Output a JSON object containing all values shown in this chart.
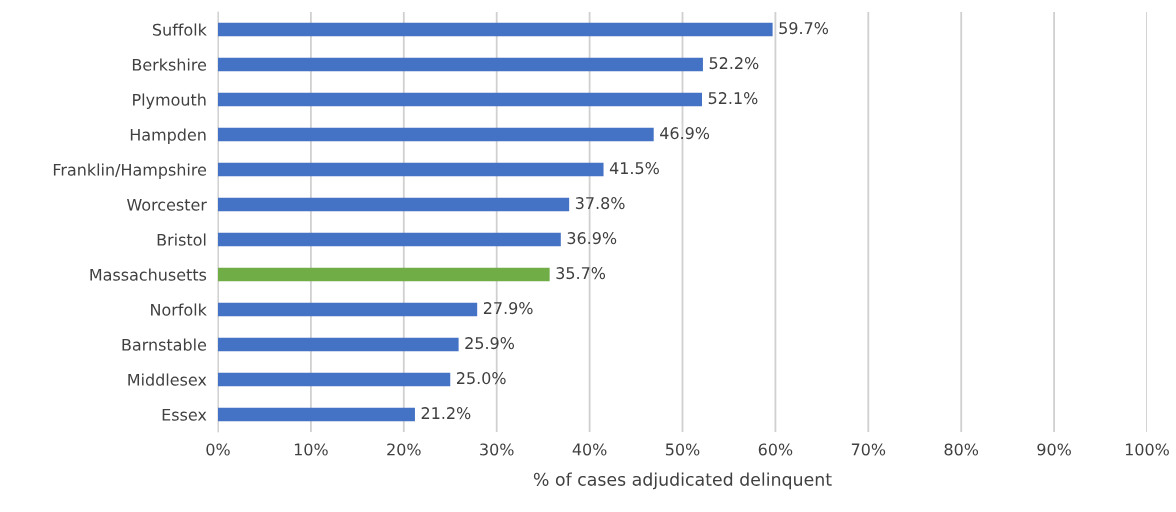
{
  "chart_data": {
    "type": "bar",
    "orientation": "horizontal",
    "xlabel": "% of cases adjudicated delinquent",
    "categories": [
      "Suffolk",
      "Berkshire",
      "Plymouth",
      "Hampden",
      "Franklin/Hampshire",
      "Worcester",
      "Bristol",
      "Massachusetts",
      "Norfolk",
      "Barnstable",
      "Middlesex",
      "Essex"
    ],
    "values": [
      59.7,
      52.2,
      52.1,
      46.9,
      41.5,
      37.8,
      36.9,
      35.7,
      27.9,
      25.9,
      25.0,
      21.2
    ],
    "value_labels": [
      "59.7%",
      "52.2%",
      "52.1%",
      "46.9%",
      "41.5%",
      "37.8%",
      "36.9%",
      "35.7%",
      "27.9%",
      "25.9%",
      "25.0%",
      "21.2%"
    ],
    "colors": [
      "#4472c4",
      "#4472c4",
      "#4472c4",
      "#4472c4",
      "#4472c4",
      "#4472c4",
      "#4472c4",
      "#70ad47",
      "#4472c4",
      "#4472c4",
      "#4472c4",
      "#4472c4"
    ],
    "xlim": [
      0,
      100
    ],
    "xticks": [
      {
        "value": 0,
        "label": "0%"
      },
      {
        "value": 10,
        "label": "10%"
      },
      {
        "value": 20,
        "label": "20%"
      },
      {
        "value": 30,
        "label": "30%"
      },
      {
        "value": 40,
        "label": "40%"
      },
      {
        "value": 50,
        "label": "50%"
      },
      {
        "value": 60,
        "label": "60%"
      },
      {
        "value": 70,
        "label": "70%"
      },
      {
        "value": 80,
        "label": "80%"
      },
      {
        "value": 90,
        "label": "90%"
      },
      {
        "value": 100,
        "label": "100%"
      }
    ],
    "grid": "x",
    "legend": false
  }
}
